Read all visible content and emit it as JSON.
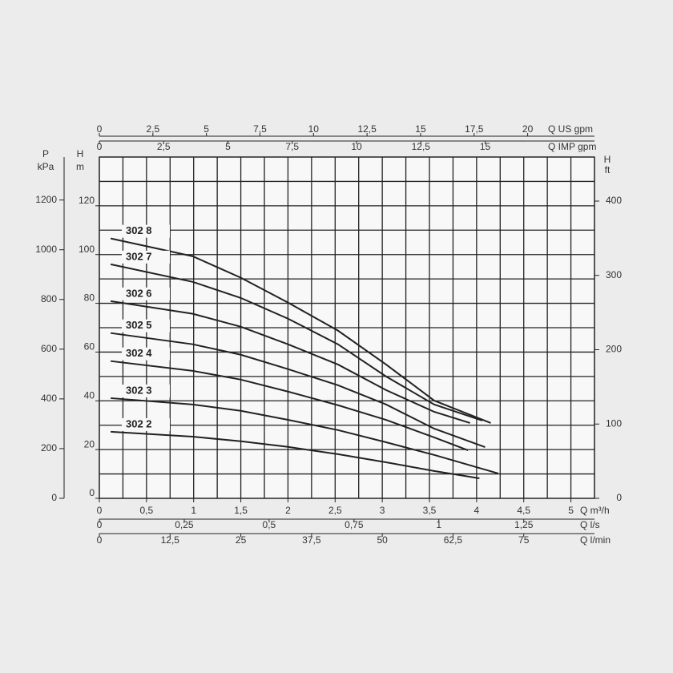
{
  "chart_data": {
    "type": "line",
    "x_label": "Q m³/h",
    "y_label": "H",
    "y_unit": "m",
    "xlim": [
      0,
      5.25
    ],
    "xticks": [
      0,
      {
        "value": 0.5,
        "label": "0,5"
      },
      1,
      {
        "value": 1.5,
        "label": "1,5"
      },
      2,
      {
        "value": 2.5,
        "label": "2,5"
      },
      3,
      {
        "value": 3.5,
        "label": "3,5"
      },
      4,
      {
        "value": 4.5,
        "label": "4,5"
      },
      5
    ],
    "ylim": [
      0,
      140
    ],
    "yticks": [
      0,
      20,
      40,
      60,
      80,
      100,
      120
    ],
    "xgrid": [
      0,
      0.25,
      0.5,
      0.75,
      1,
      1.25,
      1.5,
      1.75,
      2,
      2.25,
      2.5,
      2.75,
      3,
      3.25,
      3.5,
      3.75,
      4,
      4.25,
      4.5,
      4.75,
      5,
      5.25
    ],
    "ygrid": [
      0,
      10,
      20,
      30,
      40,
      50,
      60,
      70,
      80,
      90,
      100,
      110,
      120,
      130,
      140
    ],
    "extra_x_axes": [
      {
        "title": "Q US gpm",
        "side": "top",
        "lim": [
          0,
          23.12
        ],
        "ticks": [
          0,
          {
            "value": 2.5,
            "label": "2,5"
          },
          5,
          {
            "value": 7.5,
            "label": "7,5"
          },
          10,
          {
            "value": 12.5,
            "label": "12,5"
          },
          15,
          {
            "value": 17.5,
            "label": "17,5"
          },
          20
        ]
      },
      {
        "title": "Q IMP gpm",
        "side": "top",
        "lim": [
          0,
          19.25
        ],
        "ticks": [
          0,
          {
            "value": 2.5,
            "label": "2,5"
          },
          5,
          {
            "value": 7.5,
            "label": "7,5"
          },
          10,
          {
            "value": 12.5,
            "label": "12,5"
          },
          15
        ]
      },
      {
        "title": "Q l/s",
        "side": "bottom",
        "lim": [
          0,
          1.4583
        ],
        "ticks": [
          0,
          {
            "value": 0.25,
            "label": "0,25"
          },
          {
            "value": 0.5,
            "label": "0,5"
          },
          {
            "value": 0.75,
            "label": "0,75"
          },
          1,
          {
            "value": 1.25,
            "label": "1,25"
          }
        ]
      },
      {
        "title": "Q l/min",
        "side": "bottom",
        "lim": [
          0,
          87.5
        ],
        "ticks": [
          0,
          {
            "value": 12.5,
            "label": "12,5"
          },
          25,
          {
            "value": 37.5,
            "label": "37,5"
          },
          50,
          {
            "value": 62.5,
            "label": "62,5"
          },
          75
        ]
      }
    ],
    "extra_y_axes": [
      {
        "title": "P",
        "unit": "kPa",
        "side": "left",
        "lim": [
          0,
          1372.9
        ],
        "ticks": [
          0,
          200,
          400,
          600,
          800,
          1000,
          1200
        ]
      },
      {
        "title": "H",
        "unit": "ft",
        "side": "right",
        "lim": [
          0,
          459.3
        ],
        "ticks": [
          0,
          100,
          200,
          300,
          400
        ]
      }
    ],
    "series": [
      {
        "name": "302 8",
        "color": "#222222",
        "x": [
          0.12,
          0.99,
          1.5,
          2.0,
          2.53,
          3.04,
          3.55,
          4.15
        ],
        "values": [
          106.6,
          99.3,
          90.5,
          80.3,
          68.8,
          54.9,
          40.1,
          30.9
        ]
      },
      {
        "name": "302 7",
        "color": "#222222",
        "x": [
          0.12,
          0.99,
          1.5,
          2.0,
          2.53,
          3.04,
          3.55,
          4.06
        ],
        "values": [
          96,
          88.8,
          82.2,
          73.7,
          63.2,
          50,
          38.5,
          31.9
        ]
      },
      {
        "name": "302 6",
        "color": "#222222",
        "x": [
          0.12,
          0.99,
          1.5,
          2.0,
          2.53,
          3.04,
          3.55,
          3.93
        ],
        "values": [
          80.9,
          75.7,
          70.4,
          63.2,
          54.9,
          44.4,
          35.5,
          30.9
        ]
      },
      {
        "name": "302 5",
        "color": "#222222",
        "x": [
          0.12,
          0.99,
          1.5,
          2.0,
          2.53,
          3.04,
          3.55,
          4.09
        ],
        "values": [
          67.8,
          63.2,
          58.9,
          53,
          46.4,
          38.5,
          28.6,
          21
        ]
      },
      {
        "name": "302 4",
        "color": "#222222",
        "x": [
          0.12,
          0.99,
          1.5,
          2.0,
          2.53,
          3.04,
          3.55,
          3.91
        ],
        "values": [
          56.3,
          52.3,
          48.7,
          43.8,
          38.2,
          32.2,
          25,
          19.7
        ]
      },
      {
        "name": "302 3",
        "color": "#222222",
        "x": [
          0.12,
          0.99,
          1.5,
          2.0,
          2.53,
          3.04,
          3.55,
          4.23
        ],
        "values": [
          41.1,
          38.5,
          35.9,
          32.2,
          28,
          23,
          17.8,
          10.2
        ]
      },
      {
        "name": "302 2",
        "color": "#222222",
        "x": [
          0.12,
          0.99,
          1.5,
          2.0,
          2.53,
          3.04,
          3.55,
          4.03
        ],
        "values": [
          27.3,
          25.3,
          23.4,
          21.1,
          18.1,
          14.8,
          11.2,
          8.2
        ]
      }
    ]
  }
}
